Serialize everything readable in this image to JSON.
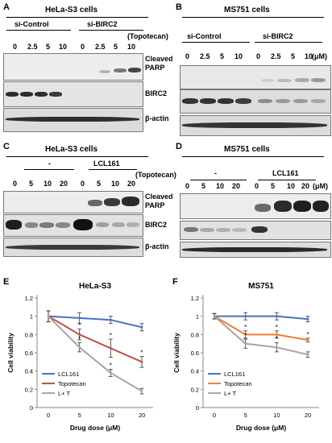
{
  "panel_labels": {
    "a": "A",
    "b": "B",
    "c": "C",
    "d": "D",
    "e": "E",
    "f": "F"
  },
  "panel_a": {
    "title": "HeLa-S3 cells",
    "group1": "si-Control",
    "group2": "si-BIRC2",
    "drug": "(Topotecan)",
    "doses": [
      "0",
      "2.5",
      "5",
      "10",
      "0",
      "2.5",
      "5",
      "10"
    ],
    "rows": [
      "Cleaved PARP",
      "BIRC2",
      "β-actin"
    ]
  },
  "panel_b": {
    "title": "MS751 cells",
    "group1": "si-Control",
    "group2": "si-BIRC2",
    "drug": "(μM)",
    "doses": [
      "0",
      "2.5",
      "5",
      "10",
      "0",
      "2.5",
      "5",
      "10"
    ],
    "rows": [
      "Cleaved PARP",
      "BIRC2",
      "β-actin"
    ]
  },
  "panel_c": {
    "title": "HeLa-S3 cells",
    "group1": "-",
    "group2": "LCL161",
    "drug": "(Topotecan)",
    "doses": [
      "0",
      "5",
      "10",
      "20",
      "0",
      "5",
      "10",
      "20"
    ],
    "rows": [
      "Cleaved PARP",
      "BIRC2",
      "β-actin"
    ]
  },
  "panel_d": {
    "title": "MS751 cells",
    "group1": "-",
    "group2": "LCL161",
    "drug": "(μM)",
    "doses": [
      "0",
      "5",
      "10",
      "20",
      "0",
      "5",
      "10",
      "20"
    ],
    "rows": [
      "Cleaved PARP",
      "BIRC2",
      "β-actin"
    ]
  },
  "chart_data": [
    {
      "type": "line",
      "title": "HeLa-S3",
      "xlabel": "Drug dose (μM)",
      "ylabel": "Cell viability",
      "categories": [
        "0",
        "5",
        "10",
        "20"
      ],
      "yticks": [
        "0",
        "0.2",
        "0.4",
        "0.6",
        "0.8",
        "1",
        "1.2"
      ],
      "ylim": [
        0,
        1.2
      ],
      "legend": "bottom-left",
      "grid": false,
      "series": [
        {
          "name": "LCL161",
          "color": "#4472c4",
          "values": [
            1.0,
            0.98,
            0.96,
            0.88
          ],
          "errors": [
            0.06,
            0.06,
            0.04,
            0.04
          ]
        },
        {
          "name": "Topotecan",
          "color": "#c0504d",
          "values": [
            1.0,
            0.8,
            0.65,
            0.5
          ],
          "errors": [
            0.06,
            0.06,
            0.1,
            0.06
          ]
        },
        {
          "name": "L+ T",
          "color": "#a5a5a5",
          "values": [
            1.0,
            0.66,
            0.38,
            0.18
          ],
          "errors": [
            0.06,
            0.05,
            0.04,
            0.03
          ]
        }
      ],
      "annotations": [
        "*",
        "*",
        "*",
        "*",
        "*"
      ]
    },
    {
      "type": "line",
      "title": "MS751",
      "xlabel": "Drug dose (μM)",
      "ylabel": "Cell viability",
      "categories": [
        "0",
        "5",
        "10",
        "20"
      ],
      "yticks": [
        "0",
        "0.2",
        "0.4",
        "0.6",
        "0.8",
        "1",
        "1.2"
      ],
      "ylim": [
        0,
        1.2
      ],
      "legend": "bottom-left",
      "grid": false,
      "series": [
        {
          "name": "LCL161",
          "color": "#4472c4",
          "values": [
            1.0,
            1.0,
            1.0,
            0.97
          ],
          "errors": [
            0.03,
            0.04,
            0.04,
            0.03
          ]
        },
        {
          "name": "Topotecan",
          "color": "#ed7d31",
          "values": [
            1.0,
            0.8,
            0.8,
            0.74
          ],
          "errors": [
            0.03,
            0.04,
            0.04,
            0.02
          ]
        },
        {
          "name": "L+ T",
          "color": "#a5a5a5",
          "values": [
            1.0,
            0.7,
            0.66,
            0.58
          ],
          "errors": [
            0.03,
            0.05,
            0.05,
            0.03
          ]
        }
      ],
      "annotations": [
        "*",
        "*",
        "*",
        "*",
        "*"
      ]
    }
  ]
}
